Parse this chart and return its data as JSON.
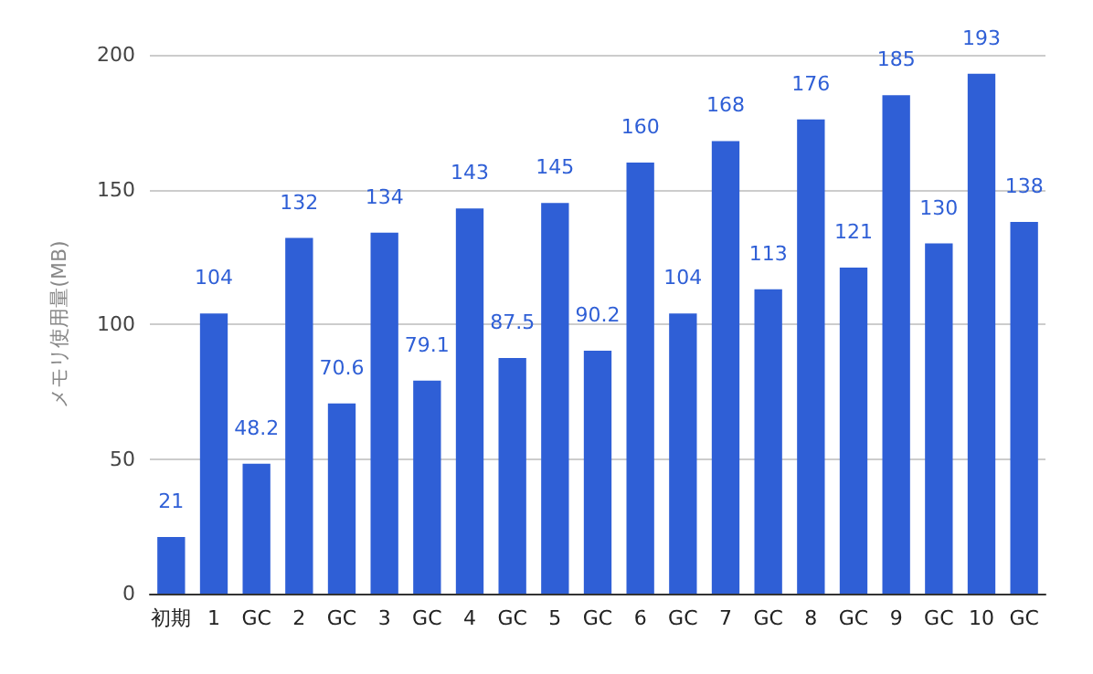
{
  "chart_data": {
    "type": "bar",
    "ylabel": "メモリ使用量(MB)",
    "categories": [
      "初期",
      "1",
      "GC",
      "2",
      "GC",
      "3",
      "GC",
      "4",
      "GC",
      "5",
      "GC",
      "6",
      "GC",
      "7",
      "GC",
      "8",
      "GC",
      "9",
      "GC",
      "10",
      "GC"
    ],
    "values": [
      21,
      104,
      48.2,
      132,
      70.6,
      134,
      79.1,
      143,
      87.5,
      145,
      90.2,
      160,
      104,
      168,
      113,
      176,
      121,
      185,
      130,
      193,
      138
    ],
    "color": "#2f5fd6",
    "ylim": [
      0,
      200
    ],
    "yticks": [
      0,
      50,
      100,
      150,
      200
    ],
    "grid": "y",
    "data_labels": true
  }
}
